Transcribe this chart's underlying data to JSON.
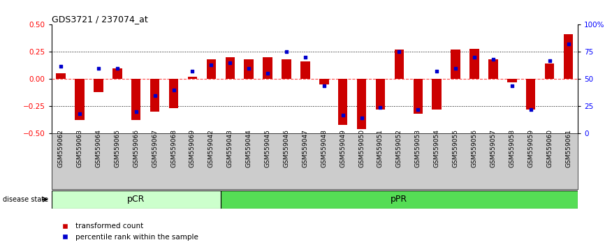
{
  "title": "GDS3721 / 237074_at",
  "samples": [
    "GSM559062",
    "GSM559063",
    "GSM559064",
    "GSM559065",
    "GSM559066",
    "GSM559067",
    "GSM559068",
    "GSM559069",
    "GSM559042",
    "GSM559043",
    "GSM559044",
    "GSM559045",
    "GSM559046",
    "GSM559047",
    "GSM559048",
    "GSM559049",
    "GSM559050",
    "GSM559051",
    "GSM559052",
    "GSM559053",
    "GSM559054",
    "GSM559055",
    "GSM559056",
    "GSM559057",
    "GSM559058",
    "GSM559059",
    "GSM559060",
    "GSM559061"
  ],
  "transformed_count": [
    0.05,
    -0.38,
    -0.12,
    0.1,
    -0.38,
    -0.3,
    -0.27,
    0.02,
    0.18,
    0.2,
    0.18,
    0.2,
    0.18,
    0.16,
    -0.05,
    -0.42,
    -0.46,
    -0.28,
    0.27,
    -0.32,
    -0.28,
    0.27,
    0.28,
    0.18,
    -0.03,
    -0.28,
    0.14,
    0.41
  ],
  "percentile_rank": [
    62,
    18,
    60,
    60,
    20,
    35,
    40,
    57,
    63,
    65,
    60,
    55,
    75,
    70,
    44,
    17,
    14,
    24,
    75,
    22,
    57,
    60,
    70,
    68,
    44,
    22,
    67,
    82
  ],
  "pCR_count": 9,
  "pPR_count": 19,
  "pCR_color": "#ccffcc",
  "pPR_color": "#55dd55",
  "group_label_pCR": "pCR",
  "group_label_pPR": "pPR",
  "disease_state_label": "disease state",
  "bar_color": "#cc0000",
  "dot_color": "#0000cc",
  "ylim": [
    -0.5,
    0.5
  ],
  "y2lim": [
    0,
    100
  ],
  "yticks": [
    -0.5,
    -0.25,
    0,
    0.25,
    0.5
  ],
  "y2ticks": [
    0,
    25,
    50,
    75,
    100
  ],
  "legend_transformed": "transformed count",
  "legend_percentile": "percentile rank within the sample",
  "bg_color": "#ffffff",
  "plot_bg": "#ffffff",
  "tick_area_bg": "#cccccc"
}
